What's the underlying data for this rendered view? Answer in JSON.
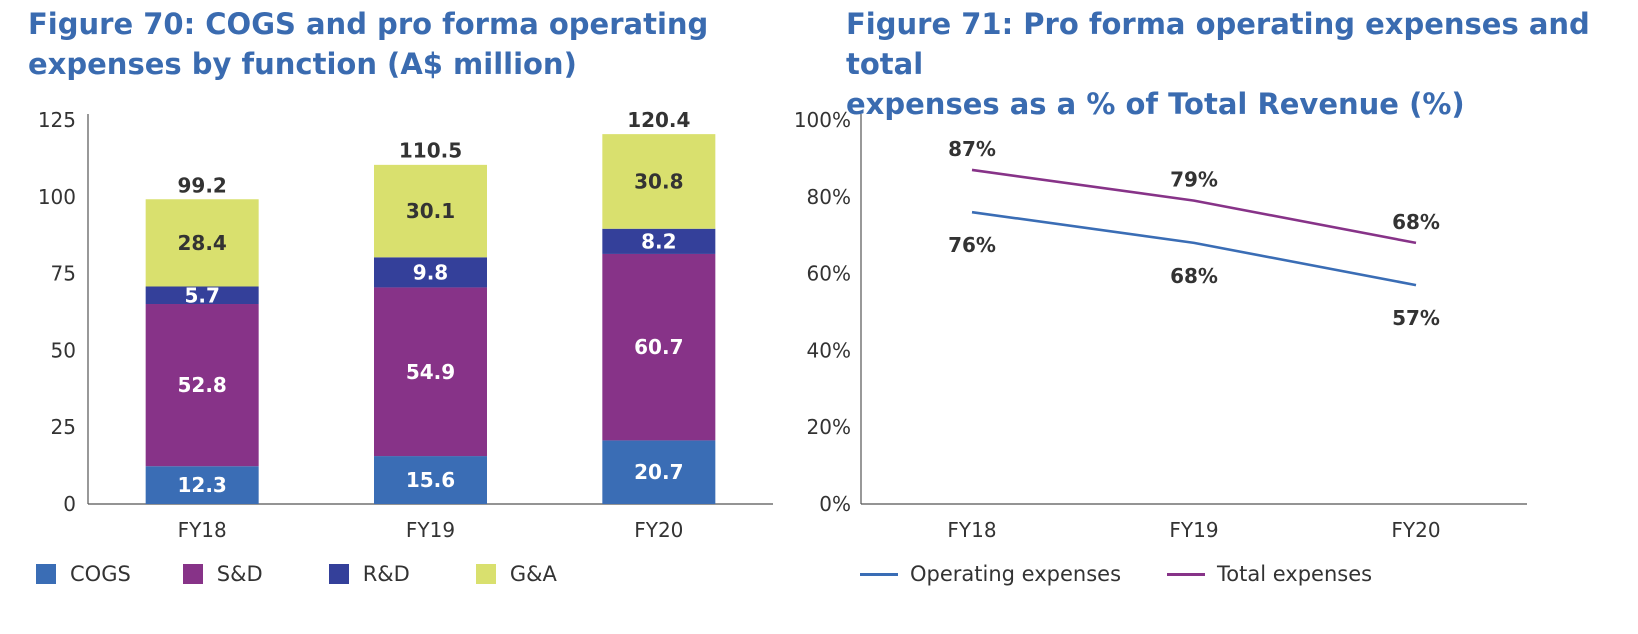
{
  "charts": {
    "left": {
      "title_line1": "Figure 70: COGS and pro forma operating",
      "title_line2": "expenses by function (A$ million)"
    },
    "right": {
      "title_line1": "Figure 71: Pro forma operating expenses and total",
      "title_line2": "expenses as a % of Total Revenue (%)"
    }
  },
  "chart_data": [
    {
      "type": "bar",
      "stacked": true,
      "title": "Figure 70: COGS and pro forma operating expenses by function (A$ million)",
      "categories": [
        "FY18",
        "FY19",
        "FY20"
      ],
      "ylim": [
        0,
        125
      ],
      "yticks": [
        0,
        25,
        50,
        75,
        100,
        125
      ],
      "ytick_labels": [
        "0",
        "25",
        "50",
        "75",
        "100",
        "125"
      ],
      "series": [
        {
          "name": "COGS",
          "values": [
            12.3,
            15.6,
            20.7
          ],
          "labels": [
            "12.3",
            "15.6",
            "20.7"
          ],
          "color": "#3a6db5",
          "label_color": "#ffffff"
        },
        {
          "name": "S&D",
          "values": [
            52.8,
            54.9,
            60.7
          ],
          "labels": [
            "52.8",
            "54.9",
            "60.7"
          ],
          "color": "#873388",
          "label_color": "#ffffff"
        },
        {
          "name": "R&D",
          "values": [
            5.7,
            9.8,
            8.2
          ],
          "labels": [
            "5.7",
            "9.8",
            "8.2"
          ],
          "color": "#34409a",
          "label_color": "#ffffff"
        },
        {
          "name": "G&A",
          "values": [
            28.4,
            30.1,
            30.8
          ],
          "labels": [
            "28.4",
            "30.1",
            "30.8"
          ],
          "color": "#d9e06e",
          "label_color": "#333333"
        }
      ],
      "totals": [
        99.2,
        110.5,
        120.4
      ],
      "total_labels": [
        "99.2",
        "110.5",
        "120.4"
      ],
      "grid": false,
      "legend_position": "bottom"
    },
    {
      "type": "line",
      "title": "Figure 71: Pro forma operating expenses and total expenses as a % of Total Revenue (%)",
      "x": [
        "FY18",
        "FY19",
        "FY20"
      ],
      "ylim": [
        0,
        100
      ],
      "yticks": [
        0,
        20,
        40,
        60,
        80,
        100
      ],
      "ytick_labels": [
        "0%",
        "20%",
        "40%",
        "60%",
        "80%",
        "100%"
      ],
      "series": [
        {
          "name": "Operating expenses",
          "values": [
            76,
            68,
            57
          ],
          "labels": [
            "76%",
            "68%",
            "57%"
          ],
          "color": "#3a6db5",
          "label_side": "below"
        },
        {
          "name": "Total expenses",
          "values": [
            87,
            79,
            68
          ],
          "labels": [
            "87%",
            "79%",
            "68%"
          ],
          "color": "#873388",
          "label_side": "above"
        }
      ],
      "grid": false,
      "legend_position": "bottom"
    }
  ]
}
